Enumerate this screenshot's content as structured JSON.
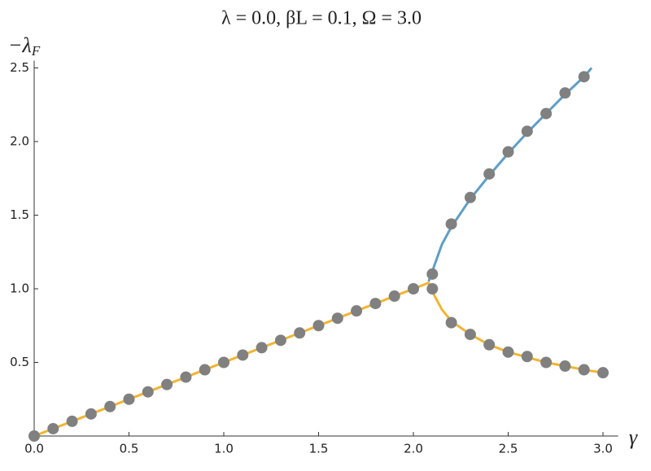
{
  "chart_data": {
    "type": "line",
    "title": "λ = 0.0, βL = 0.1, Ω = 3.0",
    "y_label": {
      "main": "−λ",
      "sub": "F"
    },
    "x_label": "γ",
    "xlim": [
      0,
      3.08
    ],
    "ylim": [
      0,
      2.55
    ],
    "xticks": [
      {
        "value": 0,
        "label": "0.0"
      },
      {
        "value": 0.5,
        "label": "0.5"
      },
      {
        "value": 1,
        "label": "1.0"
      },
      {
        "value": 1.5,
        "label": "1.5"
      },
      {
        "value": 2,
        "label": "2.0"
      },
      {
        "value": 2.5,
        "label": "2.5"
      },
      {
        "value": 3,
        "label": "3.0"
      }
    ],
    "yticks": [
      0.5,
      {
        "value": 1,
        "label": "1.0"
      },
      1.5,
      {
        "value": 2,
        "label": "2.0"
      },
      2.5
    ],
    "series": [
      {
        "kind": "line",
        "color": "#5e9ec8",
        "x": [
          2.08,
          2.09,
          2.1,
          2.15,
          2.2,
          2.3,
          2.4,
          2.5,
          2.6,
          2.7,
          2.8,
          2.9,
          2.94
        ],
        "values": [
          1.05,
          1.08,
          1.12,
          1.3,
          1.42,
          1.61,
          1.77,
          1.92,
          2.06,
          2.19,
          2.32,
          2.44,
          2.5
        ]
      },
      {
        "kind": "line",
        "color": "#f2b431",
        "x": [
          0,
          2.08,
          2.1,
          2.15,
          2.2,
          2.3,
          2.4,
          2.5,
          2.6,
          2.7,
          2.8,
          2.9,
          3.0
        ],
        "values": [
          0,
          1.04,
          0.98,
          0.86,
          0.78,
          0.69,
          0.62,
          0.57,
          0.535,
          0.5,
          0.475,
          0.45,
          0.43
        ]
      },
      {
        "kind": "points",
        "color": "#808080",
        "x": [
          0,
          0.1,
          0.2,
          0.3,
          0.4,
          0.5,
          0.6,
          0.7,
          0.8,
          0.9,
          1.0,
          1.1,
          1.2,
          1.3,
          1.4,
          1.5,
          1.6,
          1.7,
          1.8,
          1.9,
          2.0,
          2.1,
          2.1,
          2.2,
          2.3,
          2.4,
          2.5,
          2.6,
          2.7,
          2.8,
          2.9,
          2.2,
          2.3,
          2.4,
          2.5,
          2.6,
          2.7,
          2.8,
          2.9,
          3.0
        ],
        "values": [
          0,
          0.05,
          0.1,
          0.15,
          0.2,
          0.25,
          0.3,
          0.35,
          0.4,
          0.45,
          0.5,
          0.55,
          0.6,
          0.65,
          0.7,
          0.75,
          0.8,
          0.85,
          0.9,
          0.95,
          1.0,
          1.1,
          1.0,
          1.44,
          1.62,
          1.78,
          1.93,
          2.07,
          2.19,
          2.33,
          2.44,
          0.77,
          0.69,
          0.62,
          0.57,
          0.54,
          0.5,
          0.475,
          0.45,
          0.43
        ]
      }
    ]
  }
}
